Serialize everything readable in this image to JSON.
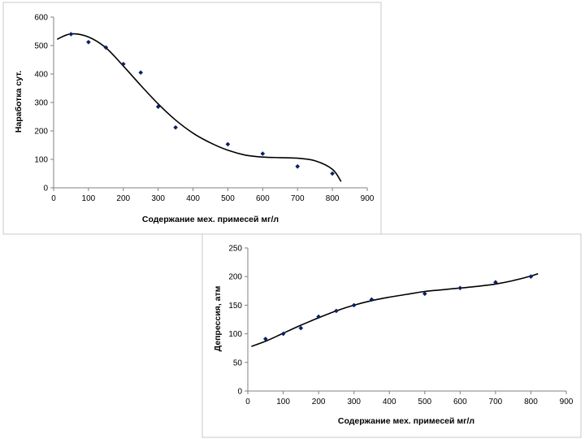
{
  "chart_data": [
    {
      "type": "scatter",
      "xlabel": "Содержание мех. примесей мг/л",
      "ylabel": "Наработка сут.",
      "xlim": [
        0,
        900
      ],
      "ylim": [
        0,
        600
      ],
      "xticks": [
        "0",
        "100",
        "200",
        "300",
        "400",
        "500",
        "600",
        "700",
        "800",
        "900"
      ],
      "yticks": [
        "0",
        "100",
        "200",
        "300",
        "400",
        "500",
        "600"
      ],
      "grid": false,
      "points": {
        "x": [
          50,
          100,
          150,
          200,
          250,
          300,
          350,
          500,
          600,
          700,
          800
        ],
        "y": [
          540,
          512,
          493,
          435,
          405,
          285,
          212,
          153,
          120,
          75,
          50
        ]
      },
      "trendline": {
        "x": [
          10,
          50,
          100,
          150,
          200,
          250,
          300,
          350,
          400,
          450,
          500,
          550,
          600,
          650,
          700,
          750,
          800,
          825
        ],
        "y": [
          522,
          541,
          530,
          492,
          428,
          360,
          295,
          238,
          192,
          158,
          132,
          115,
          108,
          106,
          104,
          95,
          65,
          22
        ]
      }
    },
    {
      "type": "scatter",
      "xlabel": "Содержание мех. примесей мг/л",
      "ylabel": "Депрессия, атм",
      "xlim": [
        0,
        900
      ],
      "ylim": [
        0,
        250
      ],
      "xticks": [
        "0",
        "100",
        "200",
        "300",
        "400",
        "500",
        "600",
        "700",
        "800",
        "900"
      ],
      "yticks": [
        "0",
        "50",
        "100",
        "150",
        "200",
        "250"
      ],
      "grid": false,
      "points": {
        "x": [
          50,
          100,
          150,
          200,
          250,
          300,
          350,
          500,
          600,
          700,
          800
        ],
        "y": [
          91,
          100,
          110,
          130,
          140,
          150,
          160,
          170,
          180,
          190,
          200
        ]
      },
      "trendline": {
        "x": [
          10,
          50,
          100,
          150,
          200,
          250,
          300,
          350,
          400,
          450,
          500,
          550,
          600,
          650,
          700,
          750,
          800,
          820
        ],
        "y": [
          78,
          87,
          101,
          115,
          128,
          140,
          150,
          158,
          164,
          169,
          174,
          177,
          180,
          183,
          187,
          193,
          201,
          205
        ]
      }
    }
  ]
}
